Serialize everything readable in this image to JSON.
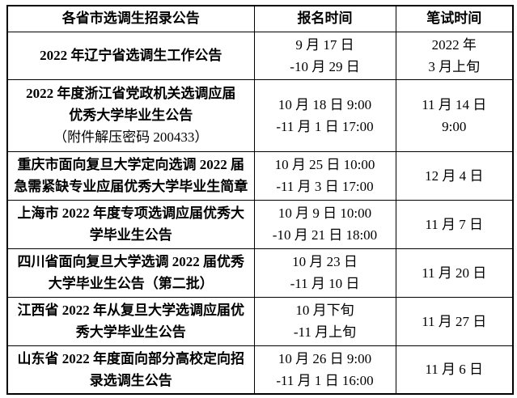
{
  "colors": {
    "background": "#ffffff",
    "border": "#000000",
    "text": "#000000"
  },
  "table": {
    "headers": [
      "各省市选调生招录公告",
      "报名时间",
      "笔试时间"
    ],
    "rows": [
      {
        "announcement_lines": [
          "2022 年辽宁省选调生工作公告"
        ],
        "note": "",
        "registration_lines": [
          "9 月 17 日",
          "-10 月 29 日"
        ],
        "exam_lines": [
          "2022 年",
          "3 月上旬"
        ]
      },
      {
        "announcement_lines": [
          "2022 年度浙江省党政机关选调应届",
          "优秀大学毕业生公告"
        ],
        "note": "（附件解压密码 200433）",
        "registration_lines": [
          "10 月 18 日 9:00",
          "-11 月 1 日 17:00"
        ],
        "exam_lines": [
          "11 月 14 日",
          "9:00"
        ]
      },
      {
        "announcement_lines": [
          "重庆市面向复旦大学定向选调 2022 届",
          "急需紧缺专业应届优秀大学毕业生简章"
        ],
        "note": "",
        "registration_lines": [
          "10 月 25 日 10:00",
          "-11 月 3 日 17:00"
        ],
        "exam_lines": [
          "12 月 4 日"
        ]
      },
      {
        "announcement_lines": [
          "上海市 2022 年度专项选调应届优秀大",
          "学毕业生公告"
        ],
        "note": "",
        "registration_lines": [
          "10 月 9 日 10:00",
          "-10 月 21 日 18:00"
        ],
        "exam_lines": [
          "11 月 7 日"
        ]
      },
      {
        "announcement_lines": [
          "四川省面向复旦大学选调 2022 届优秀",
          "大学毕业生公告（第二批）"
        ],
        "note": "",
        "registration_lines": [
          "10 月 23 日",
          "-11 月 10 日"
        ],
        "exam_lines": [
          "11 月 20 日"
        ]
      },
      {
        "announcement_lines": [
          "江西省 2022 年从复旦大学选调应届优",
          "秀大学毕业生公告"
        ],
        "note": "",
        "registration_lines": [
          "10 月下旬",
          "-11 月上旬"
        ],
        "exam_lines": [
          "11 月 27 日"
        ]
      },
      {
        "announcement_lines": [
          "山东省 2022 年度面向部分高校定向招",
          "录选调生公告"
        ],
        "note": "",
        "registration_lines": [
          "10 月 26 日 9:00",
          "-11 月 1 日 16:00"
        ],
        "exam_lines": [
          "11 月 6 日"
        ]
      }
    ]
  }
}
